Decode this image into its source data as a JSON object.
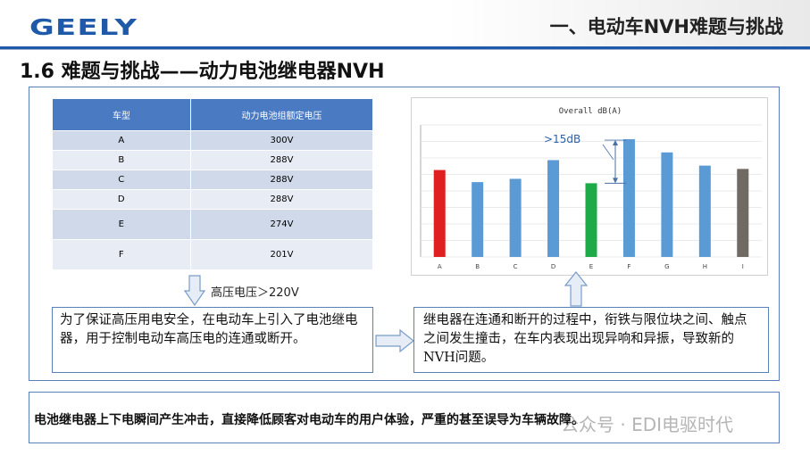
{
  "header": {
    "logo": "GEELY",
    "title": "一、电动车NVH难题与挑战"
  },
  "section_title": "1.6  难题与挑战——动力电池继电器NVH",
  "table": {
    "headers": [
      "车型",
      "动力电池组额定电压"
    ],
    "rows": [
      {
        "model": "A",
        "voltage": "300V"
      },
      {
        "model": "B",
        "voltage": "288V"
      },
      {
        "model": "C",
        "voltage": "288V"
      },
      {
        "model": "D",
        "voltage": "288V"
      },
      {
        "model": "E",
        "voltage": "274V"
      },
      {
        "model": "F",
        "voltage": "201V"
      }
    ]
  },
  "chart_data": {
    "type": "bar",
    "title": "Overall dB(A)",
    "categories": [
      "A",
      "B",
      "C",
      "D",
      "E",
      "F",
      "G",
      "H",
      "I"
    ],
    "values": [
      7.9,
      6.8,
      7.1,
      8.8,
      6.7,
      10.7,
      9.5,
      8.3,
      8.0
    ],
    "ylim": [
      0,
      12
    ],
    "colors": [
      "#e02020",
      "#5b9bd5",
      "#5b9bd5",
      "#5b9bd5",
      "#1faa4a",
      "#5b9bd5",
      "#5b9bd5",
      "#5b9bd5",
      "#6f6a64"
    ],
    "annotation": ">15dB",
    "grid": true
  },
  "hv_label": "高压电压＞220V",
  "left_box_text": "为了保证高压用电安全，在电动车上引入了电池继电器，用于控制电动车高压电的连通或断开。",
  "right_box_text": "继电器在连通和断开的过程中，衔铁与限位块之间、触点之间发生撞击，在车内表现出现异响和异振，导致新的NVH问题。",
  "bottom_text": "电池继电器上下电瞬间产生冲击，直接降低顾客对电动车的用户体验，严重的甚至误导为车辆故障。",
  "watermark": "公众号 · EDI电驱时代",
  "colors": {
    "brand_blue": "#1f5aa8",
    "frame": "#5b7fb8",
    "table_header": "#4a7ac2"
  }
}
